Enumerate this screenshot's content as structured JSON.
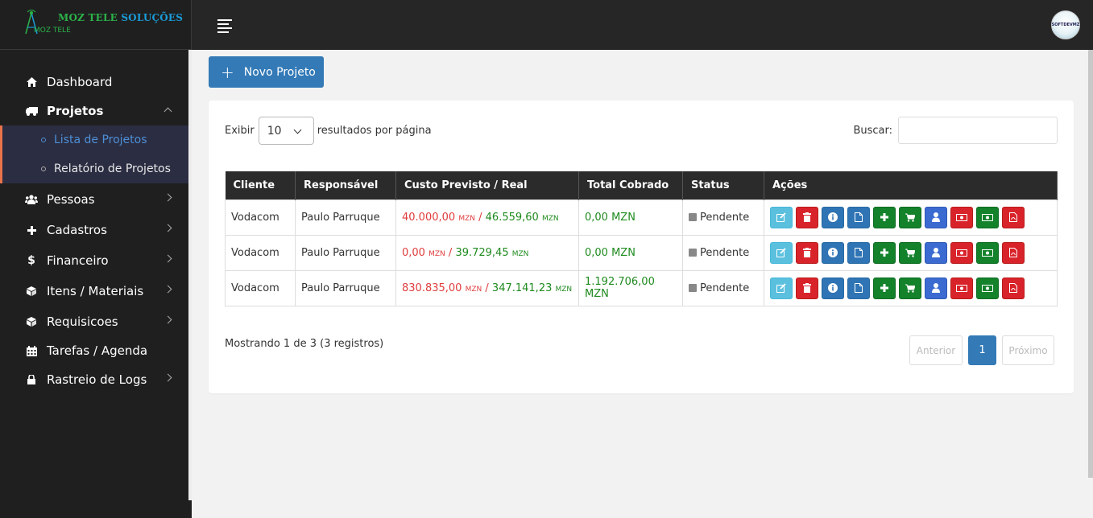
{
  "brand": {
    "title": "MOZ TELE SOLUÇÕES",
    "sub": "MOZ TELE"
  },
  "sidebar": {
    "items": [
      {
        "label": "Dashboard",
        "icon": "home-icon"
      },
      {
        "label": "Projetos",
        "icon": "truck-icon"
      },
      {
        "label": "Pessoas",
        "icon": "users-icon"
      },
      {
        "label": "Cadastros",
        "icon": "plus-icon"
      },
      {
        "label": "Financeiro",
        "icon": "dollar-icon"
      },
      {
        "label": "Itens / Materiais",
        "icon": "cube-icon"
      },
      {
        "label": "Requisicoes",
        "icon": "cube-icon"
      },
      {
        "label": "Tarefas / Agenda",
        "icon": "calendar-icon"
      },
      {
        "label": "Rastreio de Logs",
        "icon": "lock-icon"
      }
    ],
    "projetos_sub": [
      {
        "label": "Lista de Projetos"
      },
      {
        "label": "Relatório de Projetos"
      }
    ]
  },
  "topbar": {
    "avatar_text": "SOFTDEVMZ"
  },
  "main": {
    "new_button": "Novo Projeto",
    "show_label": "Exibir",
    "page_size": "10",
    "per_page_label": "resultados por página",
    "search_label": "Buscar:",
    "columns": [
      "Cliente",
      "Responsável",
      "Custo Previsto / Real",
      "Total Cobrado",
      "Status",
      "Ações"
    ],
    "rows": [
      {
        "cliente": "Vodacom",
        "responsavel": "Paulo Parruque",
        "previsto": "40.000,00",
        "real": "46.559,60",
        "cobrado": "0,00 MZN",
        "status": "Pendente"
      },
      {
        "cliente": "Vodacom",
        "responsavel": "Paulo Parruque",
        "previsto": "0,00",
        "real": "39.729,45",
        "cobrado": "0,00 MZN",
        "status": "Pendente"
      },
      {
        "cliente": "Vodacom",
        "responsavel": "Paulo Parruque",
        "previsto": "830.835,00",
        "real": "347.141,23",
        "cobrado": "1.192.706,00 MZN",
        "status": "Pendente"
      }
    ],
    "currency": "MZN",
    "separator": "/",
    "info": "Mostrando 1 de 3 (3 registros)",
    "pager": {
      "prev": "Anterior",
      "page": "1",
      "next": "Próximo"
    }
  },
  "colors": {
    "accent": "#337ab7",
    "sidebar_bg": "#1f1f1f",
    "danger": "#d9232a",
    "success": "#13822b"
  }
}
